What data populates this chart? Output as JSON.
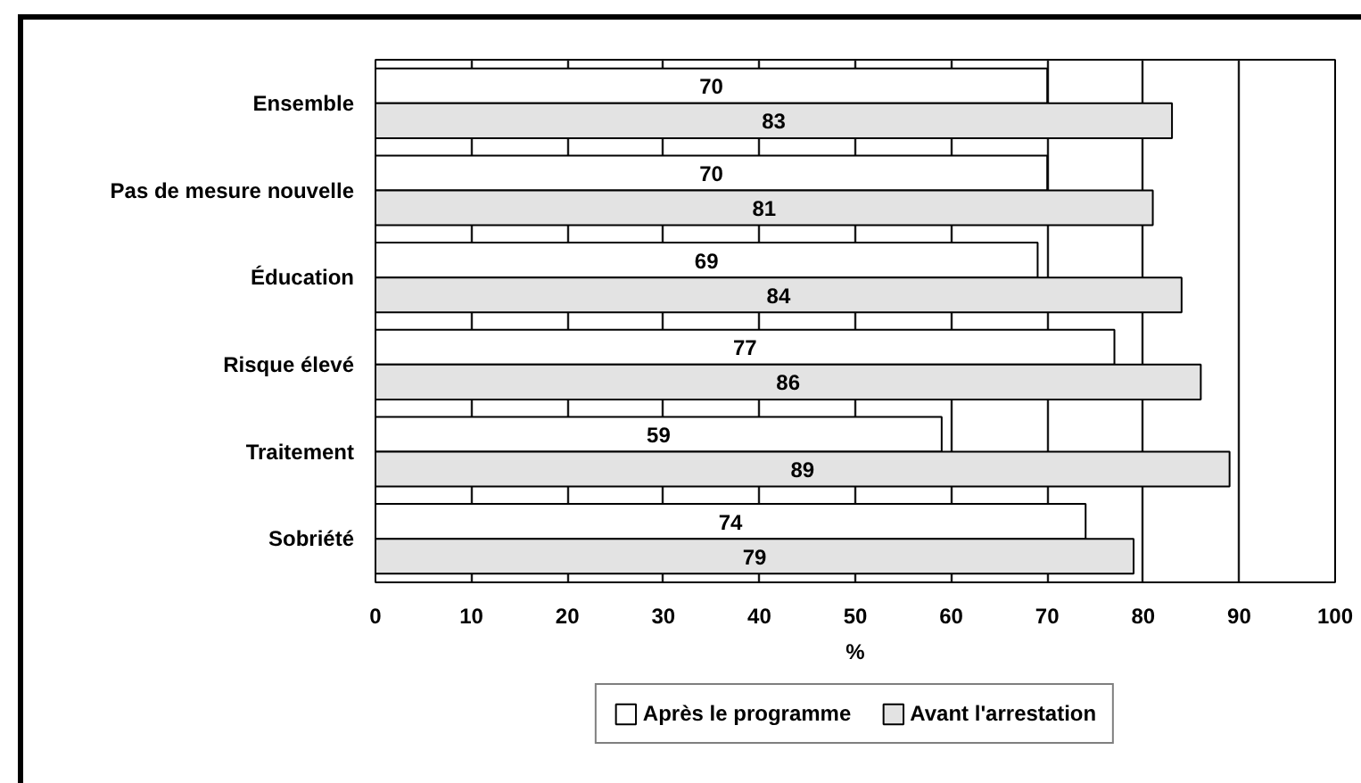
{
  "chart_data": {
    "type": "bar",
    "orientation": "horizontal",
    "categories": [
      "Ensemble",
      "Pas de mesure nouvelle",
      "Éducation",
      "Risque élevé",
      "Traitement",
      "Sobriété"
    ],
    "series": [
      {
        "name": "Après le programme",
        "color": "#ffffff",
        "values": [
          70,
          70,
          69,
          77,
          59,
          74
        ]
      },
      {
        "name": "Avant l'arrestation",
        "color": "#e3e3e3",
        "values": [
          83,
          81,
          84,
          86,
          89,
          79
        ]
      }
    ],
    "xlabel": "%",
    "xlim": [
      0,
      100
    ],
    "xticks": [
      0,
      10,
      20,
      30,
      40,
      50,
      60,
      70,
      80,
      90,
      100
    ],
    "grid": "x",
    "legend": "bottom",
    "data_labels": true
  }
}
